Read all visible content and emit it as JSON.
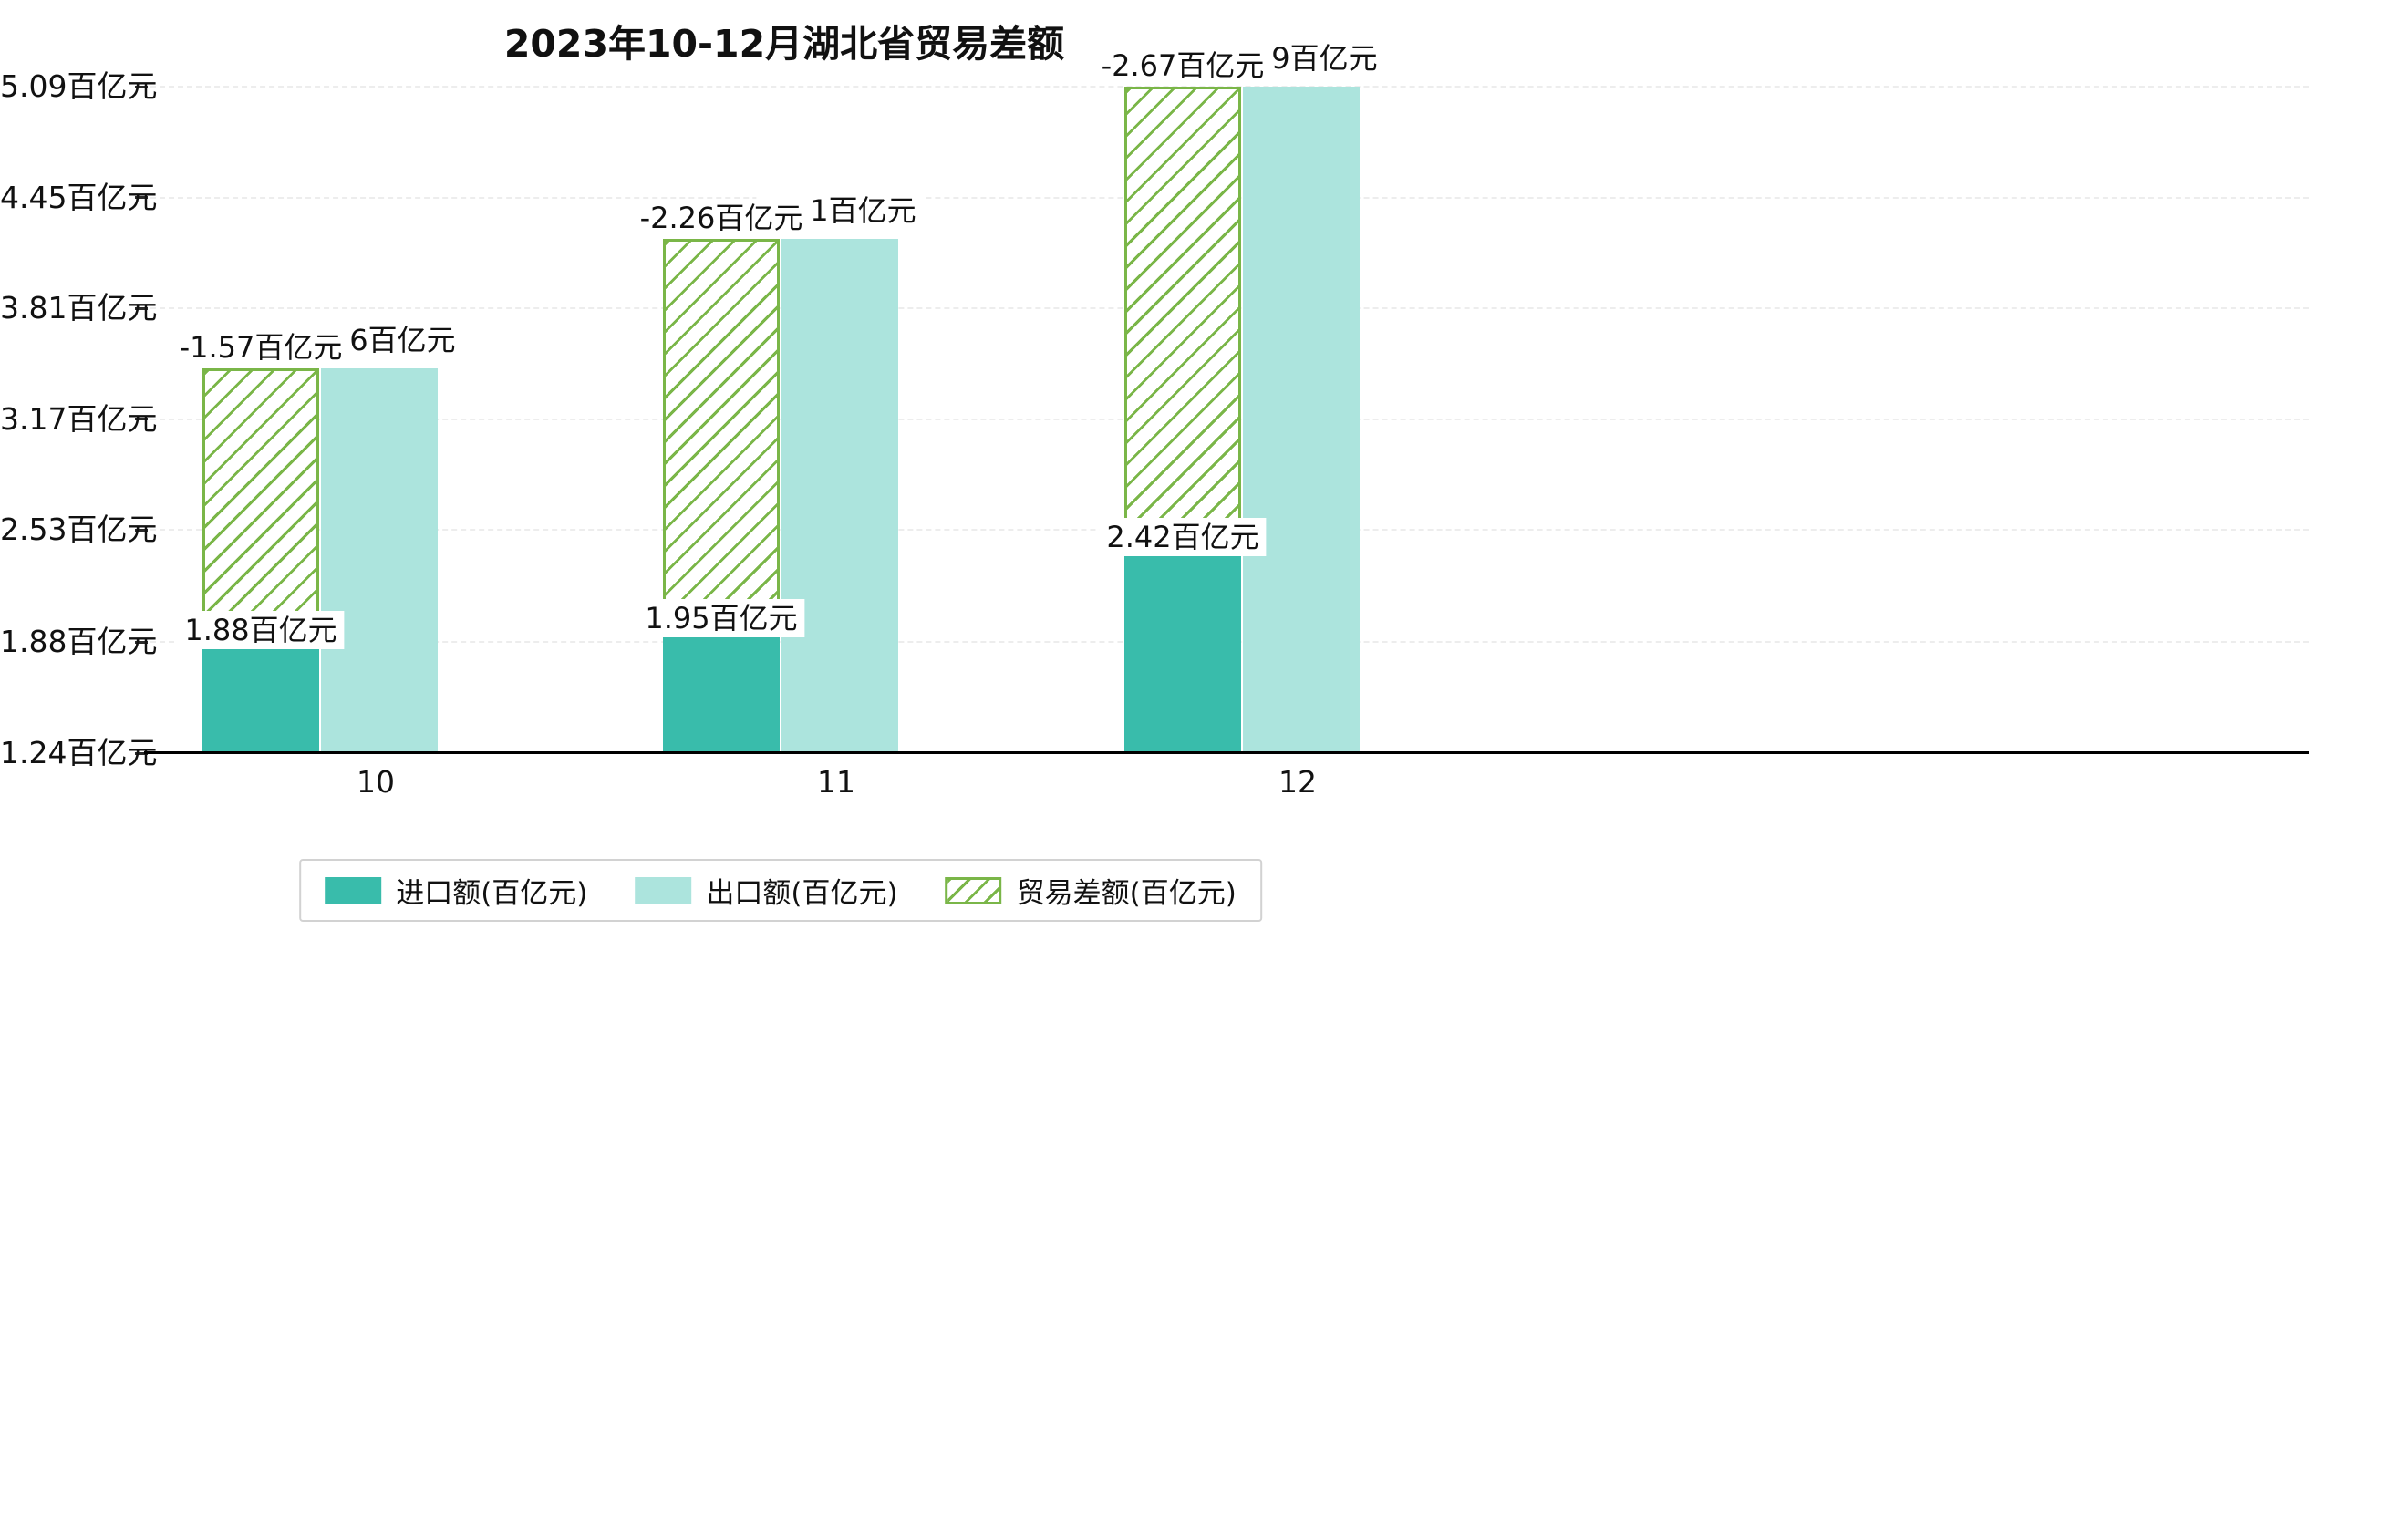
{
  "chart_data": {
    "type": "bar",
    "title": "2023年10-12月湖北省贸易差额",
    "categories": [
      "10",
      "11",
      "12"
    ],
    "series": [
      {
        "name": "进口额(百亿元)",
        "style": "solid",
        "color": "#39bcab",
        "values": [
          1.88,
          1.95,
          2.42
        ],
        "bar_labels": [
          "1.88百亿元",
          "1.95百亿元",
          "2.42百亿元"
        ]
      },
      {
        "name": "出口额(百亿元)",
        "style": "solid",
        "color": "#ace4dd",
        "values": [
          3.46,
          4.21,
          5.09
        ],
        "bar_labels": [
          "3.46百亿元",
          "4.21百亿元",
          "5.09百亿元"
        ]
      },
      {
        "name": "贸易差额(百亿元)",
        "style": "hatched",
        "color": "#7ab648",
        "values": [
          -1.57,
          -2.26,
          -2.67
        ],
        "bar_labels": [
          "-1.57百亿元",
          "-2.26百亿元",
          "-2.67百亿元"
        ]
      }
    ],
    "ylim": [
      1.24,
      5.09
    ],
    "y_ticks": [
      {
        "value": 1.24,
        "label": "1.24百亿元"
      },
      {
        "value": 1.88,
        "label": "1.88百亿元"
      },
      {
        "value": 2.53,
        "label": "2.53百亿元"
      },
      {
        "value": 3.17,
        "label": "3.17百亿元"
      },
      {
        "value": 3.81,
        "label": "3.81百亿元"
      },
      {
        "value": 4.45,
        "label": "4.45百亿元"
      },
      {
        "value": 5.09,
        "label": "5.09百亿元"
      }
    ],
    "grid": "horizontal-dashed",
    "legend_position": "bottom"
  }
}
